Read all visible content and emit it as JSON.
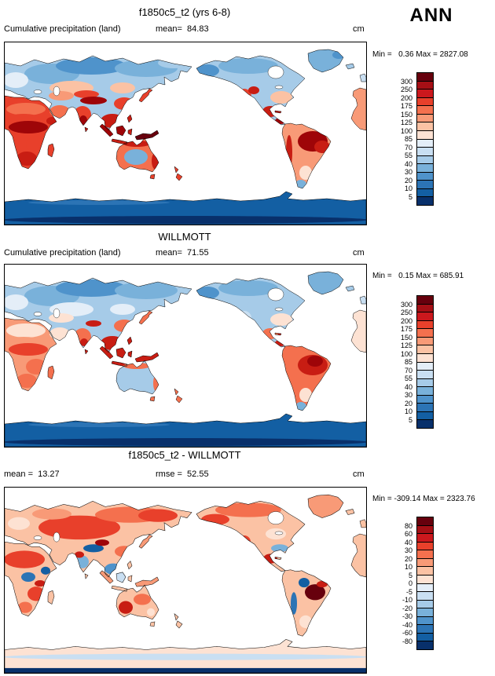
{
  "page": {
    "season_label": "ANN"
  },
  "panels": [
    {
      "title": "f1850c5_t2 (yrs 6-8)",
      "field_label": "Cumulative precipitation (land)",
      "mean_label": "mean=  84.83",
      "units": "cm",
      "minmax": "Min =   0.36 Max = 2827.08"
    },
    {
      "title": "WILLMOTT",
      "field_label": "Cumulative precipitation (land)",
      "mean_label": "mean=  71.55",
      "units": "cm",
      "minmax": "Min =   0.15 Max = 685.91"
    },
    {
      "title": "f1850c5_t2 - WILLMOTT",
      "mean_label": "mean =  13.27",
      "rmse_label": "rmse =  52.55",
      "units": "cm",
      "minmax": "Min = -309.14 Max = 2323.76"
    }
  ],
  "chart_data": [
    {
      "type": "heatmap",
      "title": "f1850c5_t2 (yrs 6-8)",
      "subtitle": "Cumulative precipitation (land)",
      "season": "ANN",
      "units": "cm",
      "mean": 84.83,
      "min": 0.36,
      "max": 2827.08,
      "projection": "global equirectangular map, longitudes 0-360E, Pacific-centered",
      "colorbar_position": "right",
      "colorbar_levels": [
        300,
        250,
        200,
        175,
        150,
        125,
        100,
        85,
        70,
        55,
        40,
        30,
        20,
        10,
        5
      ],
      "palette": [
        "#67000d",
        "#a50f15",
        "#cb181d",
        "#e8402b",
        "#f4704e",
        "#f89a77",
        "#fbc2a4",
        "#fde2d3",
        "#e4eef8",
        "#c9dff2",
        "#a6cbe8",
        "#79b1da",
        "#4f93cb",
        "#2c74b5",
        "#135fa3",
        "#08306b"
      ]
    },
    {
      "type": "heatmap",
      "title": "WILLMOTT",
      "subtitle": "Cumulative precipitation (land)",
      "units": "cm",
      "mean": 71.55,
      "min": 0.15,
      "max": 685.91,
      "projection": "global equirectangular map, longitudes 0-360E, Pacific-centered",
      "colorbar_position": "right",
      "colorbar_levels": [
        300,
        250,
        200,
        175,
        150,
        125,
        100,
        85,
        70,
        55,
        40,
        30,
        20,
        10,
        5
      ],
      "palette": [
        "#67000d",
        "#a50f15",
        "#cb181d",
        "#e8402b",
        "#f4704e",
        "#f89a77",
        "#fbc2a4",
        "#fde2d3",
        "#e4eef8",
        "#c9dff2",
        "#a6cbe8",
        "#79b1da",
        "#4f93cb",
        "#2c74b5",
        "#135fa3",
        "#08306b"
      ]
    },
    {
      "type": "heatmap",
      "title": "f1850c5_t2 - WILLMOTT",
      "subtitle": "difference map (model minus observations)",
      "units": "cm",
      "mean": 13.27,
      "rmse": 52.55,
      "min": -309.14,
      "max": 2323.76,
      "projection": "global equirectangular map, longitudes 0-360E, Pacific-centered",
      "colorbar_position": "right",
      "colorbar_levels": [
        80,
        60,
        40,
        30,
        20,
        10,
        5,
        0,
        -5,
        -10,
        -20,
        -30,
        -40,
        -60,
        -80
      ],
      "palette": [
        "#67000d",
        "#a50f15",
        "#cb181d",
        "#e8402b",
        "#f4704e",
        "#f89a77",
        "#fbc2a4",
        "#fde2d3",
        "#e4eef8",
        "#c9dff2",
        "#a6cbe8",
        "#79b1da",
        "#4f93cb",
        "#2c74b5",
        "#135fa3",
        "#08306b"
      ]
    }
  ]
}
